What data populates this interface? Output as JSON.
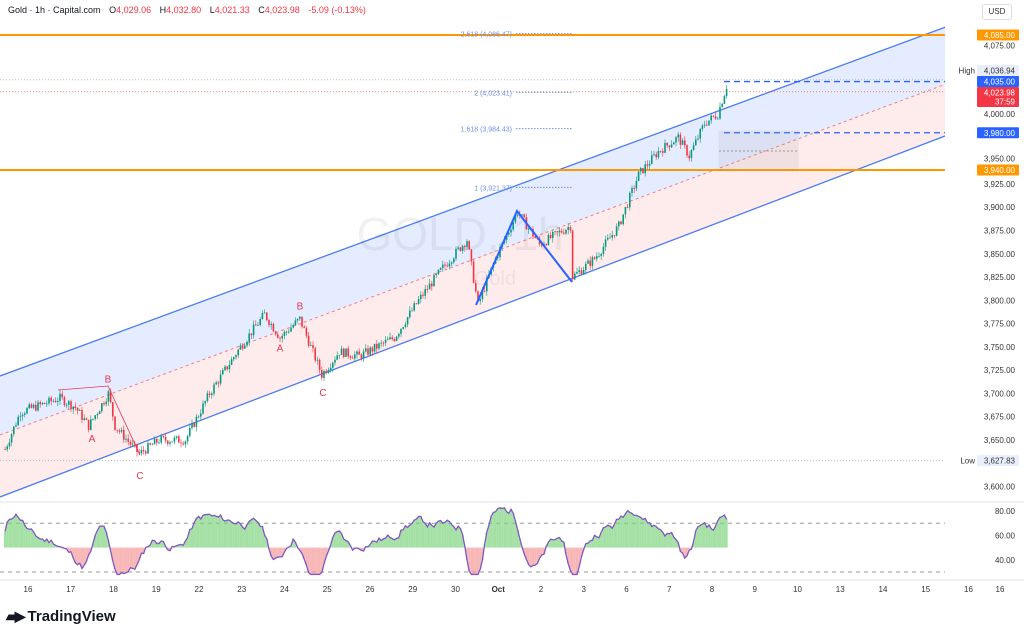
{
  "header": {
    "symbol": "Gold · 1h · Capital.com",
    "open_label": "O",
    "open": "4,029.06",
    "high_label": "H",
    "high": "4,032.80",
    "low_label": "L",
    "low": "4,021.33",
    "close_label": "C",
    "close": "4,023.98",
    "change": "-5.09 (-0.13%)"
  },
  "currency": "USD",
  "brand": "TradingView",
  "watermark": "GOLD, 1h",
  "watermark_sub": "Gold",
  "colors": {
    "up": "#089981",
    "down": "#f23645",
    "blue": "#2962ff",
    "orange": "#ff9800",
    "channel_blue": "#4a7cf0",
    "wave_red": "#e53950"
  },
  "chart_data": {
    "type": "candlestick",
    "ylim": [
      3580,
      4110
    ],
    "yticks": [
      "4,075.00",
      "4,000.00",
      "3,950.00",
      "3,925.00",
      "3,900.00",
      "3,875.00",
      "3,850.00",
      "3,825.00",
      "3,800.00",
      "3,775.00",
      "3,750.00",
      "3,725.00",
      "3,700.00",
      "3,675.00",
      "3,650.00",
      "3,600.00"
    ],
    "ytick_values": [
      4075,
      4000,
      3950,
      3925,
      3900,
      3875,
      3850,
      3825,
      3800,
      3775,
      3750,
      3725,
      3700,
      3675,
      3650,
      3600
    ],
    "xticks": [
      "16",
      "17",
      "18",
      "19",
      "22",
      "23",
      "24",
      "25",
      "26",
      "29",
      "30",
      "Oct",
      "2",
      "3",
      "6",
      "7",
      "8",
      "9",
      "10",
      "13",
      "14",
      "15",
      "16"
    ],
    "close_path": [
      [
        0,
        3640
      ],
      [
        7,
        3680
      ],
      [
        25,
        3695
      ],
      [
        32,
        3685
      ],
      [
        38,
        3665
      ],
      [
        47,
        3700
      ],
      [
        50,
        3665
      ],
      [
        61,
        3635
      ],
      [
        70,
        3650
      ],
      [
        82,
        3650
      ],
      [
        93,
        3700
      ],
      [
        107,
        3750
      ],
      [
        118,
        3785
      ],
      [
        125,
        3760
      ],
      [
        134,
        3780
      ],
      [
        144,
        3720
      ],
      [
        152,
        3745
      ],
      [
        161,
        3740
      ],
      [
        177,
        3760
      ],
      [
        188,
        3800
      ],
      [
        199,
        3835
      ],
      [
        210,
        3865
      ],
      [
        215,
        3795
      ],
      [
        223,
        3845
      ],
      [
        233,
        3895
      ],
      [
        243,
        3860
      ],
      [
        257,
        3880
      ],
      [
        258,
        3825
      ],
      [
        268,
        3845
      ],
      [
        279,
        3880
      ],
      [
        288,
        3935
      ],
      [
        297,
        3960
      ],
      [
        306,
        3975
      ],
      [
        311,
        3955
      ],
      [
        318,
        3990
      ],
      [
        324,
        4000
      ],
      [
        328,
        4030
      ]
    ],
    "price_labels": [
      {
        "text": "4,085.00",
        "value": 4085,
        "color": "#ff9800"
      },
      {
        "text": "4,036.94",
        "value": 4036.94,
        "tag": "High",
        "color": "#e8eefc"
      },
      {
        "text": "4,035.00",
        "value": 4035,
        "color": "#2962ff"
      },
      {
        "text": "4,023.98",
        "value": 4023.98,
        "sub": "37:59",
        "color": "#f23645"
      },
      {
        "text": "3,980.00",
        "value": 3980,
        "color": "#2962ff"
      },
      {
        "text": "3,940.00",
        "value": 3940,
        "color": "#ff9800"
      },
      {
        "text": "3,627.83",
        "value": 3627.83,
        "tag": "Low",
        "color": "#e8eefc"
      }
    ],
    "fib_levels": [
      {
        "text": "2.618 (4,086.47)",
        "value": 4086.47
      },
      {
        "text": "2 (4,023.41)",
        "value": 4023.41
      },
      {
        "text": "1.618 (3,984.43)",
        "value": 3984.43
      },
      {
        "text": "1 (3,921.37)",
        "value": 3921.37
      }
    ],
    "waves": [
      {
        "text": "A",
        "x": 92,
        "value": 3648
      },
      {
        "text": "B",
        "x": 108,
        "value": 3712
      },
      {
        "text": "C",
        "x": 140,
        "value": 3608
      },
      {
        "text": "A",
        "x": 280,
        "value": 3745
      },
      {
        "text": "B",
        "x": 300,
        "value": 3790
      },
      {
        "text": "C",
        "x": 323,
        "value": 3697
      }
    ],
    "rsi": {
      "ylim": [
        25,
        90
      ],
      "yticks": [
        "80.00",
        "60.00",
        "40.00"
      ],
      "ytick_values": [
        80,
        60,
        40
      ],
      "upper": 70,
      "lower": 30
    }
  }
}
